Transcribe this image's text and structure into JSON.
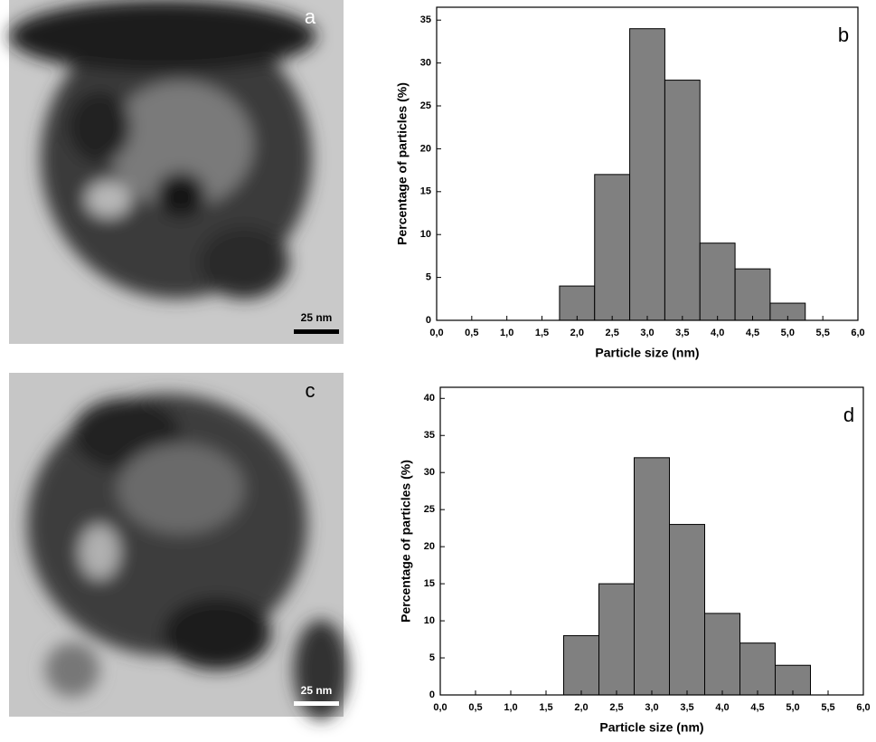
{
  "images": [
    {
      "label": "a",
      "scale_bar": "25 nm"
    },
    {
      "label": "c",
      "scale_bar": "25 nm"
    }
  ],
  "chart_data": [
    {
      "type": "histogram",
      "annotation": "b",
      "xlabel": "Particle size (nm)",
      "ylabel": "Percentage of particles (%)",
      "bins": [
        1.75,
        2.25,
        2.75,
        3.25,
        3.75,
        4.25,
        4.75,
        5.25
      ],
      "values": [
        4,
        17,
        34,
        28,
        9,
        6,
        2
      ],
      "color": "#808080",
      "xlim": [
        0,
        6
      ],
      "ylim": [
        0,
        36.5
      ],
      "xticks": [
        {
          "value": 0,
          "label": "0,0"
        },
        {
          "value": 0.5,
          "label": "0,5"
        },
        {
          "value": 1,
          "label": "1,0"
        },
        {
          "value": 1.5,
          "label": "1,5"
        },
        {
          "value": 2,
          "label": "2,0"
        },
        {
          "value": 2.5,
          "label": "2,5"
        },
        {
          "value": 3,
          "label": "3,0"
        },
        {
          "value": 3.5,
          "label": "3,5"
        },
        {
          "value": 4,
          "label": "4,0"
        },
        {
          "value": 4.5,
          "label": "4,5"
        },
        {
          "value": 5,
          "label": "5,0"
        },
        {
          "value": 5.5,
          "label": "5,5"
        },
        {
          "value": 6,
          "label": "6,0"
        }
      ],
      "yticks": [
        0,
        5,
        10,
        15,
        20,
        25,
        30,
        35
      ]
    },
    {
      "type": "histogram",
      "annotation": "d",
      "xlabel": "Particle size (nm)",
      "ylabel": "Percentage of particles (%)",
      "bins": [
        1.75,
        2.25,
        2.75,
        3.25,
        3.75,
        4.25,
        4.75,
        5.25
      ],
      "values": [
        8,
        15,
        32,
        23,
        11,
        7,
        4
      ],
      "color": "#808080",
      "xlim": [
        0,
        6
      ],
      "ylim": [
        0,
        41.5
      ],
      "xticks": [
        {
          "value": 0,
          "label": "0,0"
        },
        {
          "value": 0.5,
          "label": "0,5"
        },
        {
          "value": 1,
          "label": "1,0"
        },
        {
          "value": 1.5,
          "label": "1,5"
        },
        {
          "value": 2,
          "label": "2,0"
        },
        {
          "value": 2.5,
          "label": "2,5"
        },
        {
          "value": 3,
          "label": "3,0"
        },
        {
          "value": 3.5,
          "label": "3,5"
        },
        {
          "value": 4,
          "label": "4,0"
        },
        {
          "value": 4.5,
          "label": "4,5"
        },
        {
          "value": 5,
          "label": "5,0"
        },
        {
          "value": 5.5,
          "label": "5,5"
        },
        {
          "value": 6,
          "label": "6,0"
        }
      ],
      "yticks": [
        0,
        5,
        10,
        15,
        20,
        25,
        30,
        35,
        40
      ]
    }
  ]
}
